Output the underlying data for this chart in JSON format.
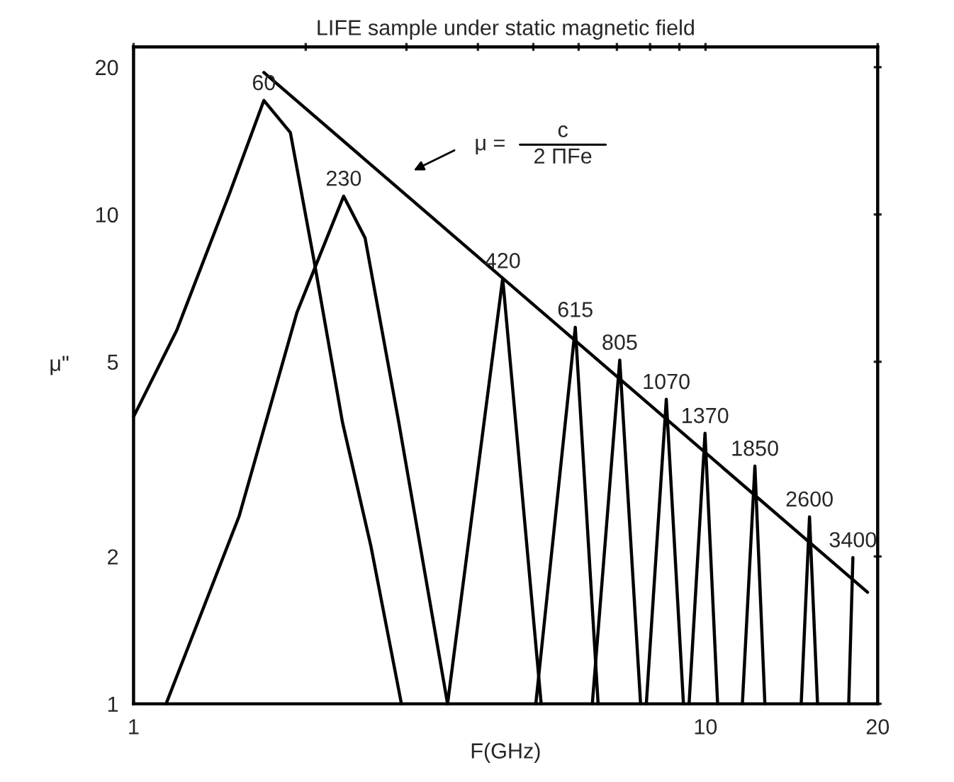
{
  "chart_data": {
    "type": "line",
    "title": "LIFE sample under static magnetic field",
    "xlabel": "F(GHz)",
    "ylabel": "μ\"",
    "log": "xy",
    "grid": false,
    "legend": false,
    "marker": "none",
    "line_style": "solid",
    "xlim": [
      1,
      20
    ],
    "ylim": [
      1,
      22
    ],
    "xticks": [
      1,
      {
        "value": 2,
        "label": null
      },
      {
        "value": 3,
        "label": null
      },
      {
        "value": 4,
        "label": null
      },
      {
        "value": 5,
        "label": null
      },
      {
        "value": 6,
        "label": null
      },
      {
        "value": 7,
        "label": null
      },
      {
        "value": 8,
        "label": null
      },
      {
        "value": 9,
        "label": null
      },
      10,
      20
    ],
    "yticks": [
      1,
      2,
      5,
      10,
      20
    ],
    "annotations": [
      "μ =",
      "c",
      "2 ΠFe"
    ],
    "series": [
      {
        "name": "60",
        "color": "#000000",
        "x": [
          1,
          1.19,
          1.47,
          1.69,
          1.88,
          2.07,
          2.32,
          2.6,
          2.94
        ],
        "values": [
          3.86,
          5.8,
          11,
          17.1,
          14.7,
          8.0,
          3.75,
          2.1,
          1
        ]
      },
      {
        "name": "230",
        "color": "#000000",
        "x": [
          1.14,
          1.53,
          1.93,
          2.33,
          2.54,
          2.91,
          3.54
        ],
        "values": [
          1,
          2.42,
          6.3,
          10.9,
          8.95,
          3.75,
          1
        ]
      },
      {
        "name": "420",
        "color": "#000000",
        "x": [
          3.54,
          4.42,
          5.16
        ],
        "values": [
          1,
          7.4,
          1
        ]
      },
      {
        "name": "615",
        "color": "#000000",
        "x": [
          5.05,
          5.92,
          6.49
        ],
        "values": [
          1,
          5.88,
          1
        ]
      },
      {
        "name": "805",
        "color": "#000000",
        "x": [
          6.34,
          7.08,
          7.7
        ],
        "values": [
          1,
          5.04,
          1
        ]
      },
      {
        "name": "1070",
        "color": "#000000",
        "x": [
          7.88,
          8.54,
          9.15
        ],
        "values": [
          1,
          4.19,
          1
        ]
      },
      {
        "name": "1370",
        "color": "#000000",
        "x": [
          9.36,
          9.98,
          10.5
        ],
        "values": [
          1,
          3.57,
          1
        ]
      },
      {
        "name": "1850",
        "color": "#000000",
        "x": [
          11.6,
          12.2,
          12.7
        ],
        "values": [
          1,
          3.06,
          1
        ]
      },
      {
        "name": "2600",
        "color": "#000000",
        "x": [
          14.7,
          15.2,
          15.7
        ],
        "values": [
          1,
          2.41,
          1
        ]
      },
      {
        "name": "3400",
        "color": "#000000",
        "x": [
          17.8,
          18.1
        ],
        "values": [
          1,
          1.99
        ]
      },
      {
        "color": "#000000",
        "x": [
          1.69,
          19.2
        ],
        "values": [
          19.5,
          1.69
        ]
      }
    ]
  }
}
